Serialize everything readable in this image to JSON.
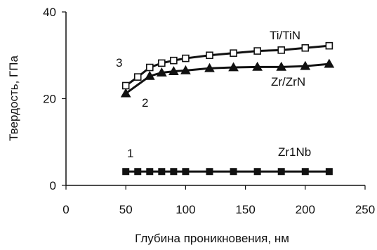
{
  "chart_data": {
    "type": "line",
    "xlabel": "Глубина проникновения, нм",
    "ylabel": "Твердость, ГПа",
    "xlim": [
      0,
      250
    ],
    "ylim": [
      0,
      40
    ],
    "x_ticks": [
      0,
      50,
      100,
      150,
      200,
      250
    ],
    "y_ticks": [
      0,
      20,
      40
    ],
    "grid": false,
    "legend": "none",
    "series": [
      {
        "name": "Ti/TiN",
        "number": "3",
        "marker": "square-open",
        "x": [
          50,
          60,
          70,
          80,
          90,
          100,
          120,
          140,
          160,
          180,
          200,
          220
        ],
        "y": [
          23,
          25,
          27.2,
          28.2,
          28.8,
          29.3,
          30,
          30.5,
          31,
          31.2,
          31.7,
          32.2
        ]
      },
      {
        "name": "Zr/ZrN",
        "number": "2",
        "marker": "triangle-filled",
        "x": [
          50,
          70,
          80,
          90,
          100,
          120,
          140,
          160,
          180,
          200,
          220
        ],
        "y": [
          21.2,
          25.2,
          26,
          26.3,
          26.5,
          27,
          27.2,
          27.3,
          27.3,
          27.5,
          28
        ]
      },
      {
        "name": "Zr1Nb",
        "number": "1",
        "marker": "square-filled",
        "x": [
          50,
          60,
          70,
          80,
          90,
          100,
          120,
          140,
          160,
          180,
          200,
          220
        ],
        "y": [
          3.2,
          3.2,
          3.2,
          3.2,
          3.2,
          3.2,
          3.2,
          3.2,
          3.2,
          3.2,
          3.2,
          3.2
        ]
      }
    ]
  }
}
